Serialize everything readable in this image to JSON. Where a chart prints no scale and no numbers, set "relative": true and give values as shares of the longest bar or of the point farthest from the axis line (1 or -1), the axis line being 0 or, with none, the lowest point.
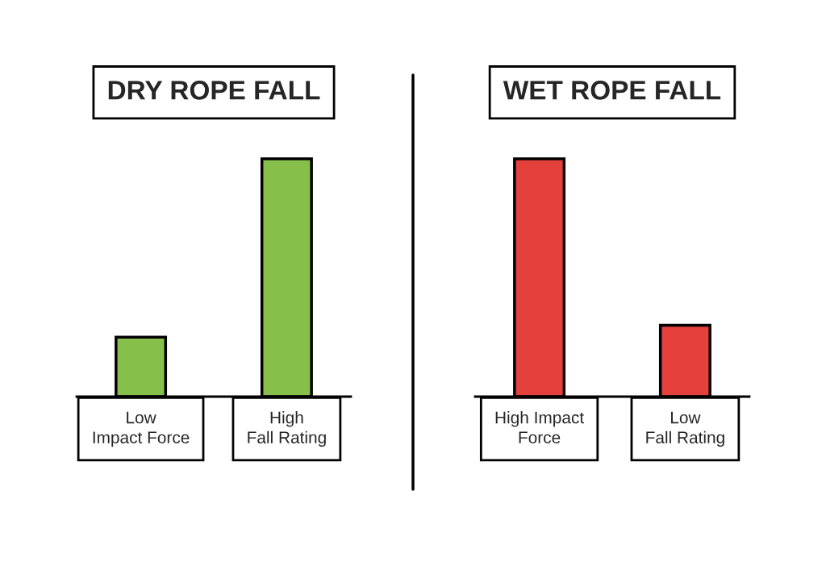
{
  "chart_data": [
    {
      "type": "bar",
      "title": "DRY ROPE FALL",
      "categories": [
        "Low\nImpact Force",
        "High\nFall Rating"
      ],
      "values": [
        0.25,
        1
      ],
      "color": "#86bf4a",
      "relative": true
    },
    {
      "type": "bar",
      "title": "WET ROPE FALL",
      "categories": [
        "High Impact\nForce",
        "Low\nFall Rating"
      ],
      "values": [
        1,
        0.3
      ],
      "color": "#e4403c",
      "relative": true
    }
  ]
}
